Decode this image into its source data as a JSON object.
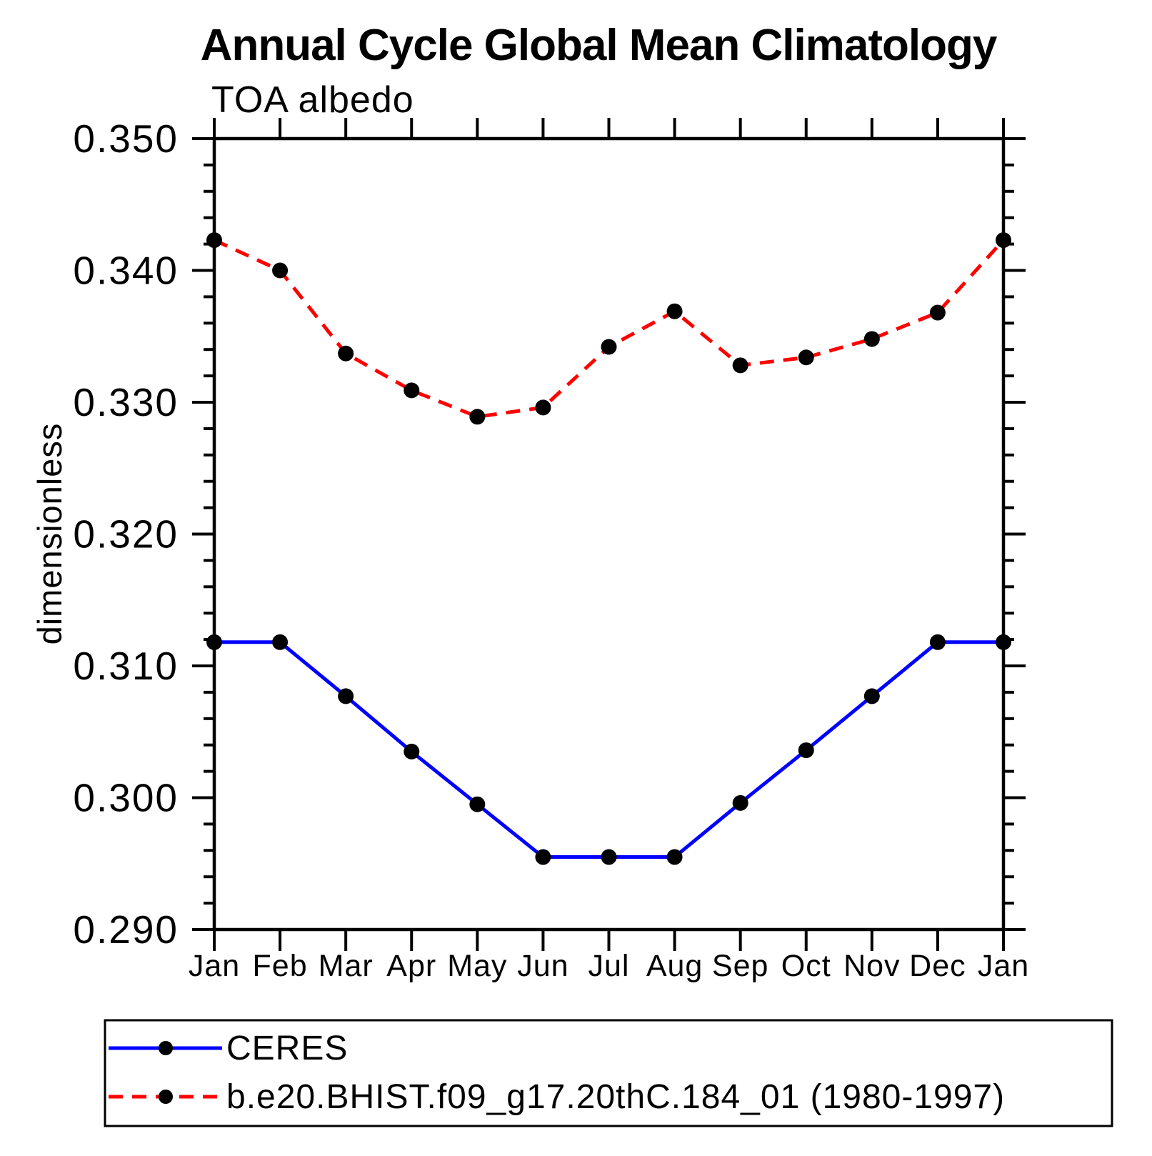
{
  "title": "Annual Cycle Global Mean Climatology",
  "subtitle": "TOA albedo",
  "ylabel": "dimensionless",
  "colors": {
    "ceres_line": "#0000ff",
    "model_line": "#ff0000",
    "marker": "#000000",
    "axis": "#000000",
    "background": "#ffffff"
  },
  "legend": {
    "entries": [
      {
        "label": "CERES",
        "color": "#0000ff",
        "style": "solid",
        "marker": "circle"
      },
      {
        "label": "b.e20.BHIST.f09_g17.20thC.184_01 (1980-1997)",
        "color": "#ff0000",
        "style": "dashed",
        "marker": "circle"
      }
    ]
  },
  "chart_data": {
    "type": "line",
    "title": "Annual Cycle Global Mean Climatology",
    "subtitle": "TOA albedo",
    "xlabel": "",
    "ylabel": "dimensionless",
    "categories": [
      "Jan",
      "Feb",
      "Mar",
      "Apr",
      "May",
      "Jun",
      "Jul",
      "Aug",
      "Sep",
      "Oct",
      "Nov",
      "Dec",
      "Jan"
    ],
    "ylim": [
      0.29,
      0.35
    ],
    "yticks": [
      0.29,
      0.3,
      0.31,
      0.32,
      0.33,
      0.34,
      0.35
    ],
    "ytick_labels": [
      "0.290",
      "0.300",
      "0.310",
      "0.320",
      "0.330",
      "0.340",
      "0.350"
    ],
    "yminor_step": 0.002,
    "grid": false,
    "legend_position": "bottom-left-box",
    "series": [
      {
        "name": "CERES",
        "color": "#0000ff",
        "style": "solid",
        "marker": "circle",
        "values": [
          0.3118,
          0.3118,
          0.3077,
          0.3035,
          0.2995,
          0.2955,
          0.2955,
          0.2955,
          0.2996,
          0.3036,
          0.3077,
          0.3118,
          0.3118
        ]
      },
      {
        "name": "b.e20.BHIST.f09_g17.20thC.184_01 (1980-1997)",
        "color": "#ff0000",
        "style": "dashed",
        "marker": "circle",
        "values": [
          0.3423,
          0.34,
          0.3337,
          0.3309,
          0.3289,
          0.3296,
          0.3342,
          0.3369,
          0.3328,
          0.3334,
          0.3348,
          0.3368,
          0.3423
        ]
      }
    ]
  }
}
